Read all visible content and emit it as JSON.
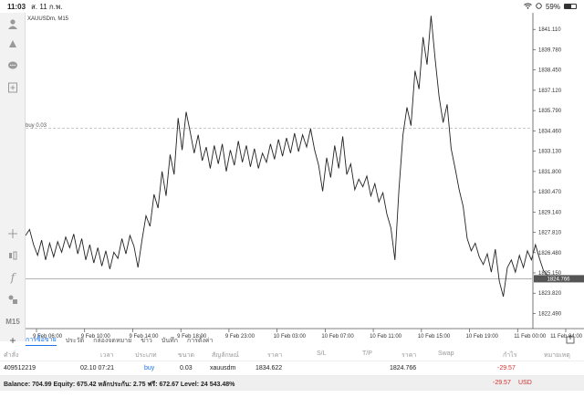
{
  "status": {
    "time": "11:03",
    "date": "ส. 11 ก.พ.",
    "battery": "59%",
    "battery_level": 0.59
  },
  "toolbar": {
    "timeframe": "M15"
  },
  "chart": {
    "symbol_label": "XAUUSDm, M15",
    "buy_line_label": "buy 0.03",
    "price_tag": "1824.766"
  },
  "chart_data": {
    "type": "line",
    "symbol": "XAUUSDm",
    "timeframe": "M15",
    "ylim": [
      1821.5,
      1842.2
    ],
    "yticks": [
      "1841.110",
      "1839.780",
      "1838.450",
      "1837.120",
      "1835.790",
      "1834.460",
      "1833.130",
      "1831.800",
      "1830.470",
      "1829.140",
      "1827.810",
      "1826.480",
      "1825.150",
      "1823.820",
      "1822.490"
    ],
    "xticks": [
      "9 Feb 06:00",
      "9 Feb 10:00",
      "9 Feb 14:00",
      "9 Feb 18:00",
      "9 Feb 23:00",
      "10 Feb 03:00",
      "10 Feb 07:00",
      "10 Feb 11:00",
      "10 Feb 15:00",
      "10 Feb 19:00",
      "11 Feb 00:00",
      "11 Feb 04:00"
    ],
    "buy_level": 1834.622,
    "current_price": 1824.766,
    "series": [
      {
        "values": [
          1827.6,
          1828.0,
          1827.0,
          1826.3,
          1827.3,
          1826.0,
          1827.1,
          1826.2,
          1827.2,
          1826.5,
          1827.5,
          1826.8,
          1827.7,
          1826.4,
          1827.4,
          1826.0,
          1827.0,
          1825.8,
          1826.8,
          1825.6,
          1826.6,
          1825.4,
          1826.5,
          1826.1,
          1827.4,
          1826.4,
          1827.6,
          1826.9,
          1825.5,
          1827.3,
          1828.9,
          1828.2,
          1830.3,
          1829.4,
          1831.8,
          1830.2,
          1832.9,
          1831.6,
          1835.3,
          1833.2,
          1835.7,
          1834.4,
          1833.0,
          1834.2,
          1832.5,
          1833.4,
          1832.0,
          1833.5,
          1832.3,
          1833.6,
          1831.8,
          1833.2,
          1832.2,
          1833.8,
          1832.4,
          1833.5,
          1832.1,
          1833.3,
          1832.0,
          1833.0,
          1832.4,
          1833.6,
          1832.6,
          1833.9,
          1832.8,
          1834.0,
          1833.0,
          1834.3,
          1833.1,
          1834.2,
          1833.4,
          1834.6,
          1833.2,
          1832.2,
          1830.5,
          1832.7,
          1831.4,
          1833.5,
          1832.0,
          1834.1,
          1831.6,
          1832.3,
          1830.6,
          1831.3,
          1830.8,
          1831.5,
          1830.2,
          1831.0,
          1829.8,
          1830.4,
          1829.0,
          1828.1,
          1826.0,
          1830.6,
          1834.2,
          1836.0,
          1834.8,
          1838.4,
          1837.2,
          1840.6,
          1838.8,
          1842.0,
          1839.2,
          1836.7,
          1835.0,
          1836.2,
          1833.3,
          1832.0,
          1830.6,
          1829.5,
          1827.4,
          1826.6,
          1827.1,
          1826.2,
          1825.7,
          1826.4,
          1825.2,
          1826.7,
          1824.6,
          1823.6,
          1825.5,
          1826.0,
          1825.2,
          1826.3,
          1825.5,
          1826.6,
          1826.0,
          1827.0,
          1826.1,
          1825.3,
          1825.0
        ]
      }
    ]
  },
  "tabs": [
    "การซื้อขาย",
    "ประวัติ",
    "กล่องจดหมาย",
    "ข่าว",
    "บันทึก",
    "การตั้งค่า"
  ],
  "table": {
    "headers": [
      "คำสั่ง",
      "เวลา",
      "ประเภท",
      "ขนาด",
      "สัญลักษณ์",
      "ราคา",
      "S/L",
      "T/P",
      "ราคา",
      "Swap",
      "กำไร",
      "หมายเหตุ"
    ],
    "row": {
      "order": "409512219",
      "time": "02.10 07:21",
      "type": "buy",
      "size": "0.03",
      "symbol": "xauusdm",
      "open_price": "1834.622",
      "price": "1824.766",
      "profit": "-29.57"
    }
  },
  "balance": {
    "text": "Balance: 704.99 Equity: 675.42 หลักประกัน: 2.75 ฟรี: 672.67 Level: 24 543.48%",
    "profit": "-29.57",
    "currency": "USD"
  },
  "colors": {
    "accent": "#1a73e8",
    "loss": "#d32f2f",
    "line": "#222222"
  },
  "icons": [
    "person-icon",
    "trade-icon",
    "chat-icon",
    "add-chart-icon",
    "crosshair-icon",
    "indicators-icon",
    "function-icon",
    "objects-icon",
    "export-icon"
  ]
}
